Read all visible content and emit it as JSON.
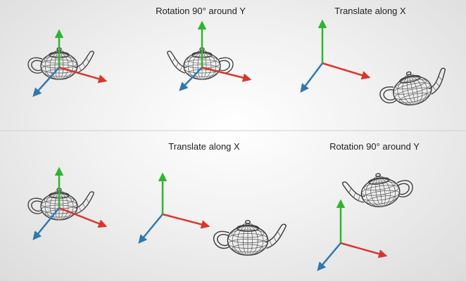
{
  "captions": {
    "row1_rotation": "Rotation 90° around Y",
    "row1_translate": "Translate along X",
    "row2_translate": "Translate along X",
    "row2_rotation": "Rotation 90° around Y"
  },
  "colors": {
    "x_axis": "#d9362b",
    "y_axis": "#2fb52f",
    "z_axis": "#2f78ad",
    "wire": "#4a4a4a",
    "background": "#ededed"
  },
  "icons": {
    "axis_gizmo": "xyz-axes-icon",
    "model": "teapot-wireframe-icon"
  }
}
